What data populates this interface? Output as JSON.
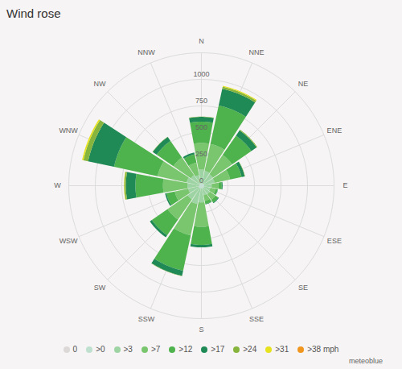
{
  "chart_data": {
    "type": "wind_rose",
    "title": "Wind rose",
    "source": "meteoblue",
    "categories": [
      "N",
      "NNE",
      "NE",
      "ENE",
      "E",
      "ESE",
      "SE",
      "SSE",
      "S",
      "SSW",
      "SW",
      "WSW",
      "W",
      "WNW",
      "NW",
      "NNW"
    ],
    "stacked": true,
    "legend": "bottom",
    "ylim": [
      0,
      1250
    ],
    "yticks": [
      0,
      250,
      500,
      750,
      1000
    ],
    "series": [
      {
        "name": "0",
        "color": "#dcd8d8",
        "values": [
          2,
          2,
          2,
          2,
          2,
          2,
          2,
          2,
          2,
          2,
          2,
          2,
          2,
          2,
          2,
          2
        ]
      },
      {
        "name": ">0",
        "color": "#bfe0cf",
        "values": [
          20,
          20,
          20,
          25,
          25,
          25,
          25,
          25,
          25,
          25,
          25,
          25,
          20,
          20,
          20,
          20
        ]
      },
      {
        "name": ">3",
        "color": "#9ed4a4",
        "values": [
          130,
          120,
          110,
          100,
          70,
          60,
          70,
          65,
          130,
          150,
          130,
          100,
          110,
          120,
          100,
          80
        ]
      },
      {
        "name": ">7",
        "color": "#79c66f",
        "values": [
          250,
          260,
          220,
          150,
          65,
          50,
          65,
          55,
          230,
          300,
          230,
          130,
          230,
          280,
          200,
          120
        ]
      },
      {
        "name": ">12",
        "color": "#4fb34d",
        "values": [
          200,
          370,
          220,
          110,
          30,
          20,
          30,
          28,
          170,
          340,
          180,
          80,
          260,
          420,
          190,
          80
        ]
      },
      {
        "name": ">17",
        "color": "#1f8a55",
        "values": [
          45,
          160,
          60,
          30,
          8,
          3,
          8,
          5,
          23,
          50,
          23,
          13,
          90,
          250,
          45,
          18
        ]
      },
      {
        "name": ">24",
        "color": "#86b43c",
        "values": [
          3,
          20,
          8,
          3,
          0,
          0,
          0,
          0,
          0,
          3,
          0,
          0,
          15,
          45,
          3,
          0
        ]
      },
      {
        "name": ">31",
        "color": "#e6e21e",
        "values": [
          0,
          8,
          0,
          0,
          0,
          0,
          0,
          0,
          0,
          0,
          0,
          0,
          3,
          13,
          0,
          0
        ]
      },
      {
        "name": ">38 mph",
        "color": "#f0961e",
        "values": [
          0,
          0,
          0,
          0,
          0,
          0,
          0,
          0,
          0,
          0,
          0,
          0,
          0,
          0,
          0,
          0
        ]
      }
    ]
  }
}
